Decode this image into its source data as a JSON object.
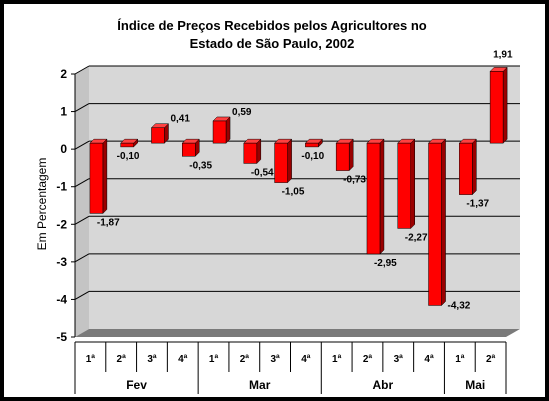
{
  "chart_data": {
    "type": "bar",
    "title_lines": [
      "Índice de Preços Recebidos pelos Agricultores no",
      "Estado de São Paulo, 2002"
    ],
    "xlabel": "",
    "ylabel": "Em Percentagem",
    "ylim": [
      -5,
      2
    ],
    "yticks": [
      "2",
      "1",
      "0",
      "-1",
      "-2",
      "-3",
      "-4",
      "-5"
    ],
    "ytick_values": [
      2,
      1,
      0,
      -1,
      -2,
      -3,
      -4,
      -5
    ],
    "grid": true,
    "legend": "none",
    "bar_color": "#ff0000",
    "categories": [
      "1ª",
      "2ª",
      "3ª",
      "4ª",
      "1ª",
      "2ª",
      "3ª",
      "4ª",
      "1ª",
      "2ª",
      "3ª",
      "4ª",
      "1ª",
      "2ª"
    ],
    "groups": [
      {
        "label": "Fev",
        "count": 4
      },
      {
        "label": "Mar",
        "count": 4
      },
      {
        "label": "Abr",
        "count": 4
      },
      {
        "label": "Mai",
        "count": 2
      }
    ],
    "values": [
      -1.87,
      -0.1,
      0.41,
      -0.35,
      0.59,
      -0.54,
      -1.05,
      -0.1,
      -0.73,
      -2.95,
      -2.27,
      -4.32,
      -1.37,
      1.91
    ],
    "labels": [
      "-1,87",
      "-0,10",
      "0,41",
      "-0,35",
      "0,59",
      "-0,54",
      "-1,05",
      "-0,10",
      "-0,73",
      "-2,95",
      "-2,27",
      "-4,32",
      "-1,37",
      "1,91"
    ]
  }
}
